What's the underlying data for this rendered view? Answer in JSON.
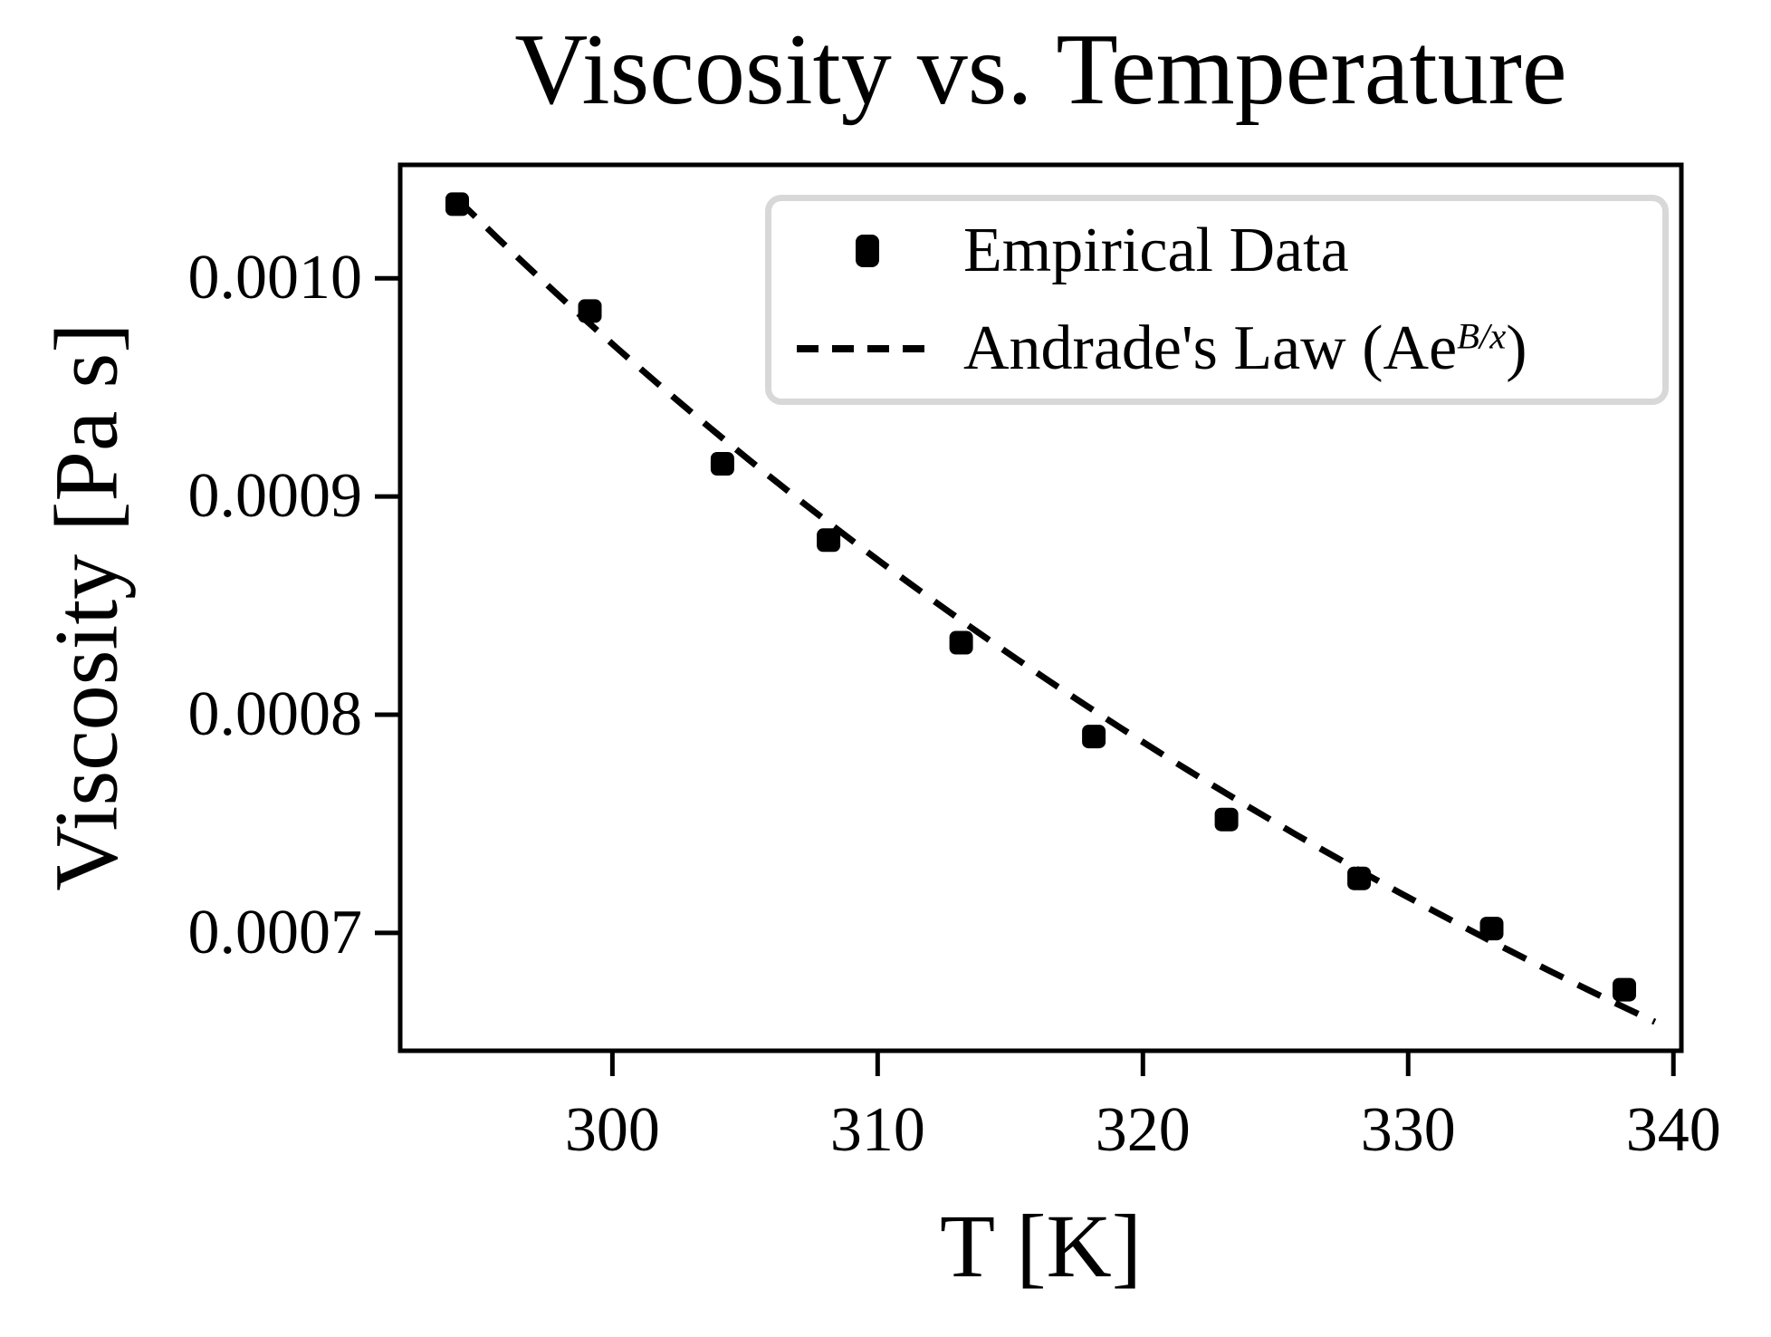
{
  "title": "Viscosity vs. Temperature",
  "legend": {
    "position": "upper right",
    "items": [
      {
        "label": "Empirical Data",
        "marker": "black-square"
      },
      {
        "label_pre": "Andrade's Law (Ae",
        "label_sup": "B/x",
        "label_post": ")",
        "marker": "dashed-line"
      }
    ]
  },
  "chart_data": {
    "type": "scatter",
    "title": "Viscosity vs. Temperature",
    "xlabel": "T [K]",
    "ylabel": "Viscosity [Pa s]",
    "xlim": [
      292.0,
      340.3
    ],
    "ylim": [
      0.000646,
      0.001052
    ],
    "grid": false,
    "legend_position": "upper right",
    "x_tick_values": [
      300,
      310,
      320,
      330,
      340
    ],
    "x_tick_labels": [
      "300",
      "310",
      "320",
      "330",
      "340"
    ],
    "y_tick_values": [
      0.001,
      0.0009,
      0.0008,
      0.0007
    ],
    "y_tick_labels": [
      "0.0010",
      "0.0009",
      "0.0008",
      "0.0007"
    ],
    "series": [
      {
        "name": "Empirical Data",
        "type": "scatter",
        "marker": "square",
        "color": "#000000",
        "x": [
          294.15,
          299.15,
          304.15,
          308.15,
          313.15,
          318.15,
          323.15,
          328.15,
          333.15,
          338.15
        ],
        "y": [
          0.001034,
          0.000985,
          0.000915,
          0.00088,
          0.000833,
          0.00079,
          0.000752,
          0.000725,
          0.000702,
          0.000674
        ]
      },
      {
        "name": "Andrade's Law (Ae^(B/x))",
        "type": "line",
        "linestyle": "dashed",
        "color": "#000000",
        "fit_model": "A*exp(B/x)",
        "A": 3.46e-05,
        "B": 1000,
        "x_start": 294.15,
        "x_end": 339.3
      }
    ],
    "colors": {
      "foreground": "#000000",
      "background": "#ffffff",
      "legend_border": "#d8d8d8"
    }
  }
}
